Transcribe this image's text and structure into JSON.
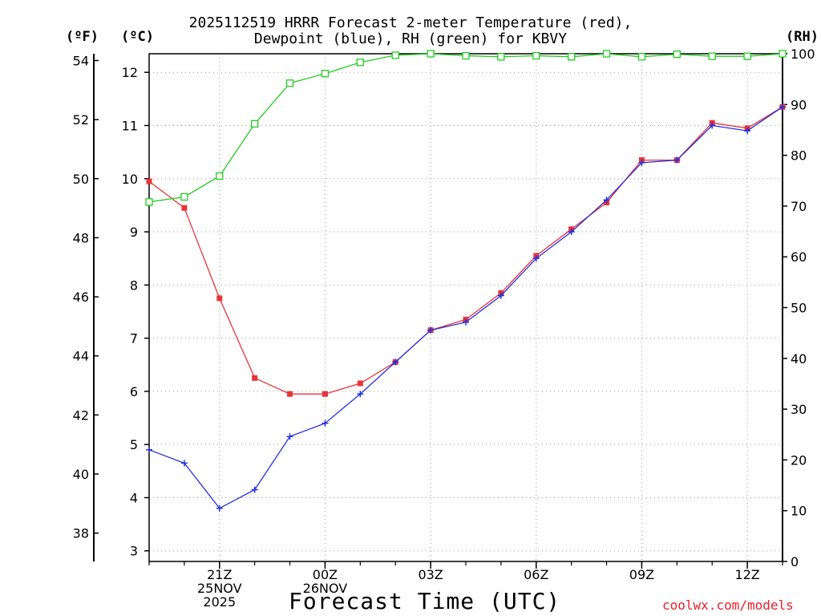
{
  "title_line1": "2025112519 HRRR Forecast 2-meter Temperature (red),",
  "title_line2": "Dewpoint (blue), RH (green) for KBVY",
  "unit_f": "(ºF)",
  "unit_c": "(ºC)",
  "unit_rh": "(RH)",
  "xlabel": "Forecast Time (UTC)",
  "watermark": "coolwx.com/models",
  "colors": {
    "temperature": "#e8343a",
    "dewpoint": "#2430e0",
    "rh": "#22cc22",
    "grid": "#999999"
  },
  "chart_data": {
    "type": "line",
    "title": "2025112519 HRRR Forecast 2-meter Temperature (red), Dewpoint (blue), RH (green) for KBVY",
    "xlabel": "Forecast Time (UTC)",
    "x_hours": [
      19,
      20,
      21,
      22,
      23,
      24,
      25,
      26,
      27,
      28,
      29,
      30,
      31,
      32,
      33,
      34,
      35,
      36,
      37
    ],
    "x_ticks": [
      {
        "hour": 21,
        "lines": [
          "21Z",
          "25NOV",
          "2025"
        ]
      },
      {
        "hour": 24,
        "lines": [
          "00Z",
          "26NOV"
        ]
      },
      {
        "hour": 27,
        "lines": [
          "03Z"
        ]
      },
      {
        "hour": 30,
        "lines": [
          "06Z"
        ]
      },
      {
        "hour": 33,
        "lines": [
          "09Z"
        ]
      },
      {
        "hour": 36,
        "lines": [
          "12Z"
        ]
      }
    ],
    "xlim": [
      19,
      37
    ],
    "y_celsius": {
      "label": "(ºC)",
      "lim": [
        2.8,
        12.35
      ],
      "ticks": [
        3,
        4,
        5,
        6,
        7,
        8,
        9,
        10,
        11,
        12
      ]
    },
    "y_fahrenheit": {
      "label": "(ºF)",
      "ticks": [
        38,
        40,
        42,
        44,
        46,
        48,
        50,
        52,
        54
      ]
    },
    "y_rh": {
      "label": "(RH)",
      "lim": [
        0,
        100
      ],
      "ticks": [
        0,
        10,
        20,
        30,
        40,
        50,
        60,
        70,
        80,
        90,
        100
      ]
    },
    "series": [
      {
        "name": "2-meter Temperature",
        "color": "red",
        "axis": "celsius",
        "marker": "filled-square",
        "values": [
          9.95,
          9.45,
          7.75,
          6.25,
          5.95,
          5.95,
          6.15,
          6.55,
          7.15,
          7.35,
          7.85,
          8.55,
          9.05,
          9.55,
          10.35,
          10.35,
          11.05,
          10.95,
          11.35
        ]
      },
      {
        "name": "Dewpoint",
        "color": "blue",
        "axis": "celsius",
        "marker": "plus",
        "values": [
          4.9,
          4.65,
          3.8,
          4.15,
          5.15,
          5.4,
          5.95,
          6.55,
          7.15,
          7.3,
          7.8,
          8.5,
          9.0,
          9.6,
          10.3,
          10.35,
          11.0,
          10.9,
          11.35
        ]
      },
      {
        "name": "RH",
        "color": "green",
        "axis": "rh",
        "marker": "open-square",
        "values": [
          70.8,
          71.8,
          75.9,
          86.2,
          94.2,
          96.1,
          98.3,
          99.7,
          100,
          99.6,
          99.4,
          99.6,
          99.4,
          100,
          99.4,
          99.9,
          99.5,
          99.5,
          100
        ]
      }
    ]
  }
}
